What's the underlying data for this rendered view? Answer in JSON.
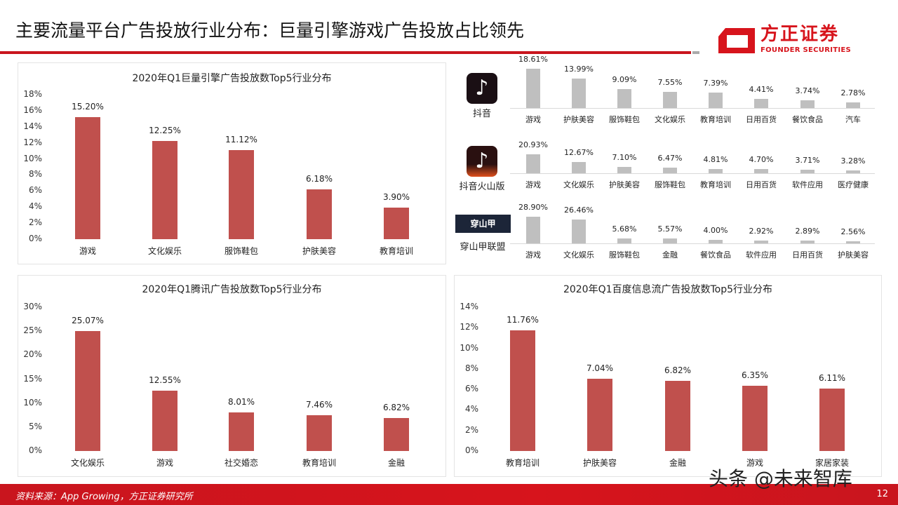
{
  "header": {
    "title": "主要流量平台广告投放行业分布：巨量引擎游戏广告投放占比领先",
    "logo_cn": "方正证券",
    "logo_en": "FOUNDER SECURITIES"
  },
  "chart_data": [
    {
      "id": "juliang",
      "type": "bar",
      "title": "2020年Q1巨量引擎广告投放数Top5行业分布",
      "categories": [
        "游戏",
        "文化娱乐",
        "服饰鞋包",
        "护肤美容",
        "教育培训"
      ],
      "values": [
        15.2,
        12.25,
        11.12,
        6.18,
        3.9
      ],
      "value_labels": [
        "15.20%",
        "12.25%",
        "11.12%",
        "6.18%",
        "3.90%"
      ],
      "ylim": [
        0,
        18
      ],
      "yticks": [
        "0%",
        "2%",
        "4%",
        "6%",
        "8%",
        "10%",
        "12%",
        "14%",
        "16%",
        "18%"
      ],
      "color": "#c0504d"
    },
    {
      "id": "tencent",
      "type": "bar",
      "title": "2020年Q1腾讯广告投放数Top5行业分布",
      "categories": [
        "文化娱乐",
        "游戏",
        "社交婚恋",
        "教育培训",
        "金融"
      ],
      "values": [
        25.07,
        12.55,
        8.01,
        7.46,
        6.82
      ],
      "value_labels": [
        "25.07%",
        "12.55%",
        "8.01%",
        "7.46%",
        "6.82%"
      ],
      "ylim": [
        0,
        30
      ],
      "yticks": [
        "0%",
        "5%",
        "10%",
        "15%",
        "20%",
        "25%",
        "30%"
      ],
      "color": "#c0504d"
    },
    {
      "id": "baidu",
      "type": "bar",
      "title": "2020年Q1百度信息流广告投放数Top5行业分布",
      "categories": [
        "教育培训",
        "护肤美容",
        "金融",
        "游戏",
        "家居家装"
      ],
      "values": [
        11.76,
        7.04,
        6.82,
        6.35,
        6.11
      ],
      "value_labels": [
        "11.76%",
        "7.04%",
        "6.82%",
        "6.35%",
        "6.11%"
      ],
      "ylim": [
        0,
        14
      ],
      "yticks": [
        "0%",
        "2%",
        "4%",
        "6%",
        "8%",
        "10%",
        "12%",
        "14%"
      ],
      "color": "#c0504d"
    },
    {
      "id": "douyin",
      "type": "bar",
      "app": "抖音",
      "icon": "tiktok-icon",
      "categories": [
        "游戏",
        "护肤美容",
        "服饰鞋包",
        "文化娱乐",
        "教育培训",
        "日用百货",
        "餐饮食品",
        "汽车"
      ],
      "values": [
        18.61,
        13.99,
        9.09,
        7.55,
        7.39,
        4.41,
        3.74,
        2.78
      ],
      "value_labels": [
        "18.61%",
        "13.99%",
        "9.09%",
        "7.55%",
        "7.39%",
        "4.41%",
        "3.74%",
        "2.78%"
      ],
      "color": "#bfbfbf"
    },
    {
      "id": "huoshan",
      "type": "bar",
      "app": "抖音火山版",
      "icon": "douyin-huoshan-icon",
      "categories": [
        "游戏",
        "文化娱乐",
        "护肤美容",
        "服饰鞋包",
        "教育培训",
        "日用百货",
        "软件应用",
        "医疗健康"
      ],
      "values": [
        20.93,
        12.67,
        7.1,
        6.47,
        4.81,
        4.7,
        3.71,
        3.28
      ],
      "value_labels": [
        "20.93%",
        "12.67%",
        "7.10%",
        "6.47%",
        "4.81%",
        "4.70%",
        "3.71%",
        "3.28%"
      ],
      "color": "#bfbfbf"
    },
    {
      "id": "pangle",
      "type": "bar",
      "app": "穿山甲联盟",
      "icon": "pangle-logo",
      "icon_text": "穿山甲",
      "categories": [
        "游戏",
        "文化娱乐",
        "服饰鞋包",
        "金融",
        "餐饮食品",
        "软件应用",
        "日用百货",
        "护肤美容"
      ],
      "values": [
        28.9,
        26.46,
        5.68,
        5.57,
        4.0,
        2.92,
        2.89,
        2.56
      ],
      "value_labels": [
        "28.90%",
        "26.46%",
        "5.68%",
        "5.57%",
        "4.00%",
        "2.92%",
        "2.89%",
        "2.56%"
      ],
      "color": "#bfbfbf"
    }
  ],
  "footer": {
    "source": "资料来源：App Growing，方正证券研究所",
    "page": "12",
    "watermark": "头条 @未来智库"
  }
}
